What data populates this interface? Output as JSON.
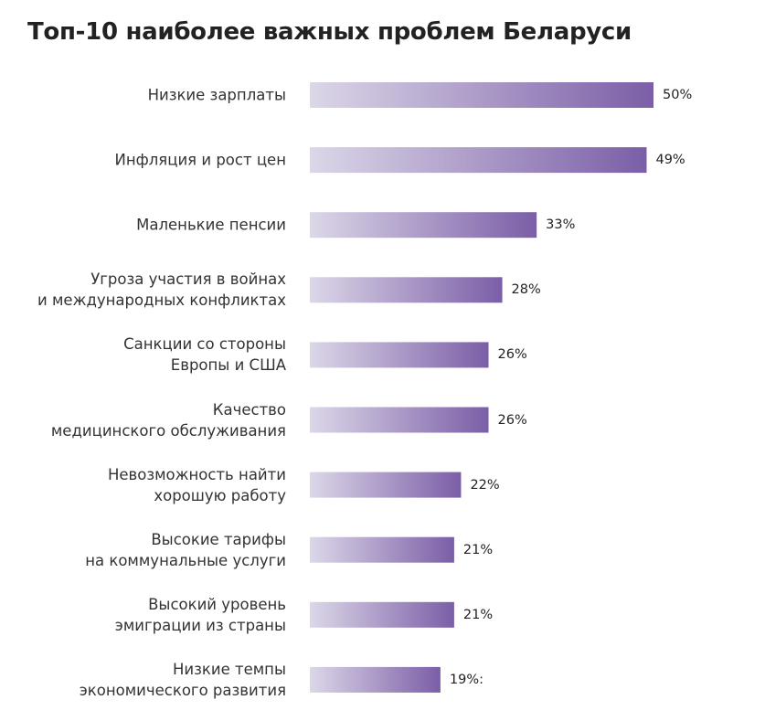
{
  "chart_data": {
    "type": "bar",
    "orientation": "horizontal",
    "title": "Топ-10 наиболее важных проблем Беларуси",
    "categories": [
      "Низкие зарплаты",
      "Инфляция и рост цен",
      "Маленькие пенсии",
      "Угроза участия в войнах\nи международных конфликтах",
      "Санкции со стороны\nЕвропы и США",
      "Качество\nмедицинского обслуживания",
      "Невозможность найти\nхорошую работу",
      "Высокие тарифы\nна коммунальные услуги",
      "Высокий уровень\nэмиграции из страны",
      "Низкие темпы\nэкономического развития"
    ],
    "values": [
      50,
      49,
      33,
      28,
      26,
      26,
      22,
      21,
      21,
      19
    ],
    "value_labels": [
      "50%",
      "49%",
      "33%",
      "28%",
      "26%",
      "26%",
      "22%",
      "21%",
      "21%",
      "19%:"
    ],
    "color": "#7b5ea7"
  }
}
